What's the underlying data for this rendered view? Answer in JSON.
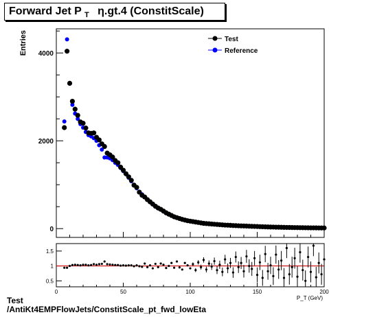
{
  "title": {
    "main": "Forward Jet P",
    "sub": "T",
    "rest": "η.gt.4 (ConstitScale)"
  },
  "footer": {
    "line1": "Test",
    "line2": "/AntiKt4EMPFlowJets/ConstitScale_pt_fwd_lowEta"
  },
  "colors": {
    "test": "#000000",
    "reference": "#0000ff",
    "ratio_line": "#cc0000"
  },
  "chart_data": [
    {
      "type": "scatter",
      "title": "Forward Jet PT η.gt.4 (ConstitScale)",
      "xlabel": "",
      "ylabel": "Entries",
      "xlim": [
        0,
        200
      ],
      "ylim": [
        -200,
        4550
      ],
      "yticks": [
        0,
        2000,
        4000
      ],
      "legend": {
        "placement": "top-right",
        "entries": [
          "Test",
          "Reference"
        ]
      },
      "x": [
        6,
        8,
        10,
        12,
        14,
        16,
        18,
        20,
        22,
        24,
        26,
        28,
        30,
        32,
        34,
        36,
        38,
        40,
        42,
        44,
        46,
        48,
        50,
        52,
        54,
        56,
        58,
        60,
        62,
        64,
        66,
        68,
        70,
        72,
        74,
        76,
        78,
        80,
        82,
        84,
        86,
        88,
        90,
        92,
        94,
        96,
        98,
        100,
        102,
        104,
        106,
        108,
        110,
        112,
        114,
        116,
        118,
        120,
        122,
        124,
        126,
        128,
        130,
        132,
        134,
        136,
        138,
        140,
        142,
        144,
        146,
        148,
        150,
        152,
        154,
        156,
        158,
        160,
        162,
        164,
        166,
        168,
        170,
        172,
        174,
        176,
        178,
        180,
        182,
        184,
        186,
        188,
        190,
        192,
        194,
        196,
        198,
        200
      ],
      "series": [
        {
          "name": "Test",
          "color": "#000000",
          "values": [
            2300,
            4040,
            3310,
            2900,
            2720,
            2580,
            2430,
            2400,
            2290,
            2180,
            2170,
            2180,
            2080,
            2020,
            1930,
            1870,
            1720,
            1680,
            1630,
            1550,
            1500,
            1400,
            1330,
            1250,
            1180,
            1100,
            990,
            940,
            830,
            760,
            720,
            660,
            610,
            560,
            510,
            470,
            440,
            400,
            360,
            330,
            300,
            270,
            250,
            230,
            210,
            195,
            180,
            170,
            160,
            150,
            140,
            130,
            120,
            115,
            110,
            105,
            100,
            95,
            90,
            85,
            80,
            78,
            75,
            70,
            68,
            65,
            62,
            60,
            58,
            55,
            52,
            50,
            48,
            45,
            43,
            40,
            38,
            36,
            35,
            33,
            32,
            30,
            28,
            27,
            26,
            25,
            24,
            23,
            22,
            21,
            20,
            19,
            18,
            18,
            17,
            16,
            15,
            15
          ]
        },
        {
          "name": "Reference",
          "color": "#0000ff",
          "values": [
            2440,
            4310,
            3300,
            2820,
            2620,
            2500,
            2380,
            2300,
            2200,
            2130,
            2100,
            2060,
            2000,
            1900,
            1800,
            1620,
            1620,
            1600,
            1560,
            1500,
            1450,
            1380,
            1310,
            1240,
            1160,
            1080,
            1000,
            920,
            840,
            780,
            720,
            660,
            600,
            550,
            500,
            460,
            430,
            390,
            350,
            320,
            290,
            265,
            245,
            225,
            205,
            190,
            175,
            165,
            155,
            145,
            135,
            125,
            118,
            112,
            106,
            100,
            96,
            92,
            88,
            84,
            80,
            76,
            72,
            69,
            66,
            63,
            60,
            58,
            56,
            53,
            50,
            48,
            46,
            44,
            42,
            40,
            38,
            36,
            34,
            33,
            32,
            30,
            29,
            28,
            26,
            25,
            24,
            23,
            22,
            21,
            20,
            19,
            18,
            17,
            16,
            16,
            15,
            15
          ]
        }
      ]
    },
    {
      "type": "scatter",
      "title": "",
      "xlabel": "P_T (GeV)",
      "ylabel": "",
      "xlim": [
        0,
        200
      ],
      "ylim": [
        0.3,
        1.75
      ],
      "yticks": [
        0.5,
        1,
        1.5
      ],
      "xticks": [
        0,
        50,
        100,
        150,
        200
      ],
      "reference_line": 1,
      "x": [
        6,
        8,
        10,
        12,
        14,
        16,
        18,
        20,
        22,
        24,
        26,
        28,
        30,
        32,
        34,
        36,
        38,
        40,
        42,
        44,
        46,
        48,
        50,
        52,
        54,
        56,
        58,
        60,
        62,
        64,
        66,
        68,
        70,
        72,
        74,
        76,
        78,
        80,
        82,
        84,
        86,
        88,
        90,
        92,
        94,
        96,
        98,
        100,
        102,
        104,
        106,
        108,
        110,
        112,
        114,
        116,
        118,
        120,
        122,
        124,
        126,
        128,
        130,
        132,
        134,
        136,
        138,
        140,
        142,
        144,
        146,
        148,
        150,
        152,
        154,
        156,
        158,
        160,
        162,
        164,
        166,
        168,
        170,
        172,
        174,
        176,
        178,
        180,
        182,
        184,
        186,
        188,
        190,
        192,
        194,
        196,
        198,
        200
      ],
      "series": [
        {
          "name": "Test",
          "color": "#000000",
          "values": [
            0.94,
            0.94,
            1.0,
            1.03,
            1.04,
            1.03,
            1.02,
            1.04,
            1.04,
            1.02,
            1.03,
            1.06,
            1.04,
            1.06,
            1.07,
            1.15,
            1.06,
            1.05,
            1.04,
            1.03,
            1.03,
            1.01,
            1.02,
            1.01,
            1.02,
            1.02,
            0.99,
            1.02,
            0.99,
            0.97,
            1.0,
            1.0,
            1.02,
            1.02,
            1.02,
            1.02,
            1.02,
            1.03,
            1.03,
            1.03,
            1.04,
            1.02,
            1.02,
            1.02,
            1.02,
            1.03,
            1.03,
            1.03,
            1.03,
            1.03,
            1.04,
            1.04,
            1.02,
            1.03,
            1.04,
            1.05,
            1.04,
            1.03,
            1.02,
            1.01,
            1.0,
            1.03,
            1.04,
            1.01,
            1.03,
            1.03,
            1.03,
            1.03,
            1.04,
            1.04,
            1.04,
            1.04,
            1.04,
            1.02,
            1.02,
            1.0,
            1.0,
            1.0,
            1.0,
            1.0,
            1.0,
            1.0,
            0.97,
            0.96,
            1.0,
            1.0,
            1.0,
            1.0,
            1.0,
            1.0,
            1.0,
            1.0,
            1.0,
            1.06,
            1.06,
            1.0,
            1.0,
            1.0
          ],
          "scatter_override": [
            0.94,
            0.94,
            1.0,
            1.03,
            1.04,
            1.03,
            1.02,
            1.04,
            1.04,
            1.02,
            1.03,
            1.06,
            1.04,
            1.06,
            1.07,
            1.15,
            1.06,
            1.05,
            1.04,
            1.03,
            1.03,
            1.01,
            1.02,
            1.01,
            1.02,
            1.02,
            0.99,
            1.02,
            0.99,
            0.97,
            1.08,
            0.96,
            1.02,
            0.92,
            1.07,
            0.96,
            1.08,
            1.04,
            0.93,
            1.0,
            1.1,
            0.94,
            1.15,
            0.95,
            0.88,
            1.1,
            1.02,
            0.92,
            1.06,
            0.86,
            1.12,
            0.96,
            1.2,
            0.88,
            1.08,
            0.98,
            1.16,
            0.86,
            1.04,
            0.8,
            1.22,
            0.92,
            1.1,
            0.78,
            1.3,
            0.96,
            1.1,
            0.82,
            1.32,
            1.0,
            0.9,
            1.26,
            0.7,
            1.12,
            0.6,
            1.4,
            0.82,
            1.02,
            0.66,
            1.38,
            0.88,
            1.18,
            0.6,
            1.6,
            0.72,
            0.96,
            1.26,
            0.64,
            1.46,
            0.86,
            0.5,
            1.3,
            0.8,
            1.68,
            0.62,
            1.1,
            0.72,
            1.22
          ]
        }
      ]
    }
  ]
}
